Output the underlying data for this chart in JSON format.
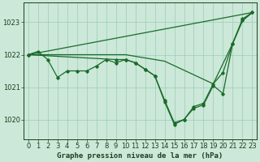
{
  "background_color": "#cce8d8",
  "grid_color": "#99ccbb",
  "line_color": "#1a6b2a",
  "title": "Graphe pression niveau de la mer (hPa)",
  "figsize": [
    3.2,
    2.0
  ],
  "dpi": 100,
  "xlim": [
    -0.5,
    23.5
  ],
  "ylim": [
    1019.4,
    1023.6
  ],
  "yticks": [
    1020,
    1021,
    1022,
    1023
  ],
  "xticks": [
    0,
    1,
    2,
    3,
    4,
    5,
    6,
    7,
    8,
    9,
    10,
    11,
    12,
    13,
    14,
    15,
    16,
    17,
    18,
    19,
    20,
    21,
    22,
    23
  ],
  "line1": {
    "x": [
      0,
      23
    ],
    "y": [
      1022.0,
      1023.3
    ],
    "marker": false,
    "lw": 0.9
  },
  "line2": {
    "x": [
      0,
      10,
      14,
      19,
      21,
      22,
      23
    ],
    "y": [
      1022.0,
      1022.0,
      1021.8,
      1021.1,
      1022.35,
      1023.05,
      1023.3
    ],
    "marker": false,
    "lw": 0.9
  },
  "line3": {
    "x": [
      0,
      1,
      2,
      3,
      4,
      5,
      6,
      7,
      8,
      9,
      10,
      11,
      12,
      13,
      14,
      15,
      16,
      17,
      18,
      19,
      20,
      21,
      22,
      23
    ],
    "y": [
      1022.0,
      1022.1,
      1021.85,
      1021.3,
      1021.5,
      1021.5,
      1021.5,
      1021.65,
      1021.85,
      1021.75,
      1021.85,
      1021.75,
      1021.55,
      1021.35,
      1020.6,
      1019.9,
      1020.0,
      1020.4,
      1020.5,
      1021.1,
      1021.45,
      1022.35,
      1023.1,
      1023.3
    ],
    "marker": true,
    "lw": 0.9
  },
  "line4": {
    "x": [
      0,
      9,
      10,
      11,
      12,
      13,
      14,
      15,
      16,
      17,
      18,
      19,
      20,
      21,
      22,
      23
    ],
    "y": [
      1022.0,
      1021.85,
      1021.85,
      1021.75,
      1021.55,
      1021.35,
      1020.55,
      1019.85,
      1020.0,
      1020.35,
      1020.45,
      1021.05,
      1020.8,
      1022.35,
      1023.05,
      1023.3
    ],
    "marker": true,
    "lw": 0.9
  }
}
